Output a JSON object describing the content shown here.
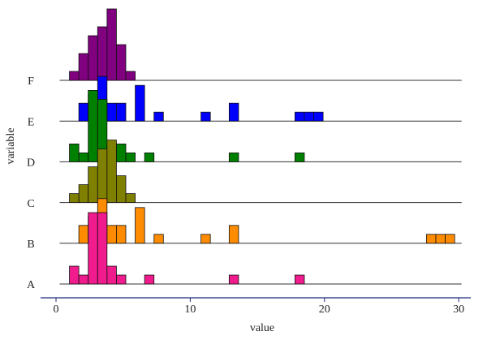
{
  "chart_data": {
    "type": "ridgeline-histogram",
    "xlabel": "value",
    "ylabel": "variable",
    "xlim": [
      -1.15,
      30.9
    ],
    "xticks": [
      0,
      10,
      20,
      30
    ],
    "bins": [
      1,
      1.7,
      2.4,
      3.1,
      3.8,
      4.5,
      5.2,
      5.9,
      6.6,
      7.3,
      8,
      8.7,
      9.4,
      10.1,
      10.8,
      11.5,
      12.2,
      12.9,
      13.6,
      14.3,
      15,
      15.7,
      16.4,
      17.1,
      17.8,
      18.5,
      19.2,
      19.9,
      20.6,
      21.3,
      22,
      22.7,
      23.4,
      24.1,
      24.8,
      25.5,
      26.2,
      26.9,
      27.6,
      28.3,
      29,
      29.7,
      30.4
    ],
    "series": [
      {
        "name": "A",
        "color": "#f01b8c",
        "values": [
          2,
          1,
          8,
          8,
          2,
          1,
          0,
          0,
          1,
          0,
          0,
          0,
          0,
          0,
          0,
          0,
          0,
          1,
          0,
          0,
          0,
          0,
          0,
          0,
          1,
          0,
          0,
          0,
          0,
          0,
          0,
          0,
          0,
          0,
          0,
          0,
          0,
          0,
          0,
          0,
          0,
          0
        ]
      },
      {
        "name": "B",
        "color": "#ff8c00",
        "values": [
          0,
          2,
          3,
          5,
          2,
          2,
          0,
          4,
          0,
          1,
          0,
          0,
          0,
          0,
          1,
          0,
          0,
          2,
          0,
          0,
          0,
          0,
          0,
          0,
          0,
          0,
          0,
          0,
          0,
          0,
          0,
          0,
          0,
          0,
          0,
          0,
          0,
          0,
          1,
          1,
          1,
          0
        ]
      },
      {
        "name": "C",
        "color": "#808000",
        "values": [
          1,
          2,
          4,
          6,
          7,
          3,
          1,
          0,
          0,
          0,
          0,
          0,
          0,
          0,
          0,
          0,
          0,
          0,
          0,
          0,
          0,
          0,
          0,
          0,
          0,
          0,
          0,
          0,
          0,
          0,
          0,
          0,
          0,
          0,
          0,
          0,
          0,
          0,
          0,
          0,
          0,
          0
        ]
      },
      {
        "name": "D",
        "color": "#008000",
        "values": [
          2,
          1,
          8,
          7,
          1,
          2,
          1,
          0,
          1,
          0,
          0,
          0,
          0,
          0,
          0,
          0,
          0,
          1,
          0,
          0,
          0,
          0,
          0,
          0,
          1,
          0,
          0,
          0,
          0,
          0,
          0,
          0,
          0,
          0,
          0,
          0,
          0,
          0,
          0,
          0,
          0,
          0
        ]
      },
      {
        "name": "E",
        "color": "#0000ff",
        "values": [
          0,
          2,
          3,
          5,
          2,
          2,
          0,
          4,
          0,
          1,
          0,
          0,
          0,
          0,
          1,
          0,
          0,
          2,
          0,
          0,
          0,
          0,
          0,
          0,
          1,
          1,
          1,
          0,
          0,
          0,
          0,
          0,
          0,
          0,
          0,
          0,
          0,
          0,
          0,
          0,
          0,
          0
        ]
      },
      {
        "name": "F",
        "color": "#800080",
        "values": [
          1,
          3,
          5,
          6,
          8,
          4,
          1,
          0,
          0,
          0,
          0,
          0,
          0,
          0,
          0,
          0,
          0,
          0,
          0,
          0,
          0,
          0,
          0,
          0,
          0,
          0,
          0,
          0,
          0,
          0,
          0,
          0,
          0,
          0,
          0,
          0,
          0,
          0,
          0,
          0,
          0,
          0
        ]
      }
    ]
  }
}
